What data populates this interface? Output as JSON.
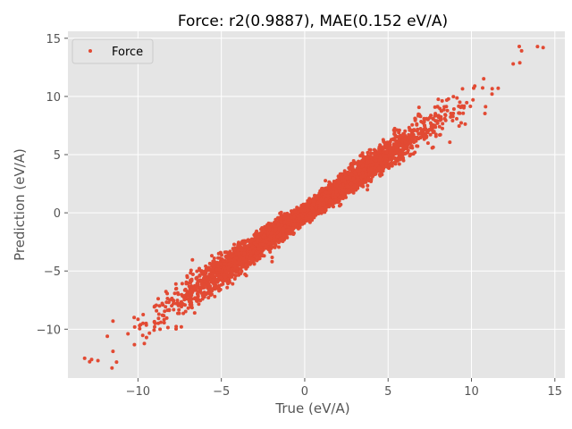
{
  "chart_data": {
    "type": "scatter",
    "title": "Force: r2(0.9887), MAE(0.152 eV/A)",
    "xlabel": "True (eV/A)",
    "ylabel": "Prediction (eV/A)",
    "xlim": [
      -14.2,
      15.6
    ],
    "ylim": [
      -14.2,
      15.6
    ],
    "xticks": [
      -10,
      -5,
      0,
      5,
      10,
      15
    ],
    "yticks": [
      -10,
      -5,
      0,
      5,
      10,
      15
    ],
    "xtick_labels": [
      "−10",
      "−5",
      "0",
      "5",
      "10",
      "15"
    ],
    "ytick_labels": [
      "−10",
      "−5",
      "0",
      "5",
      "10",
      "15"
    ],
    "grid": true,
    "legend_position": "top-left",
    "series": [
      {
        "name": "Force",
        "color": "#E24A33",
        "marker": "dot",
        "trend": {
          "slope": 1.0,
          "intercept": 0.0,
          "r2": 0.9887,
          "mae": 0.152
        },
        "x_range": [
          -13.2,
          14.3
        ],
        "points_sample": [
          [
            -13.2,
            -12.5
          ],
          [
            -12.9,
            -12.8
          ],
          [
            -12.4,
            -12.7
          ],
          [
            -11.5,
            -11.9
          ],
          [
            -10.6,
            -10.4
          ],
          [
            -9.7,
            -9.5
          ],
          [
            -8.5,
            -8.8
          ],
          [
            -7.4,
            -9.8
          ],
          [
            -6.6,
            -8.6
          ],
          [
            -5.8,
            -6.2
          ],
          [
            -5.1,
            -3.9
          ],
          [
            -4.2,
            -4.6
          ],
          [
            -3.3,
            -3.1
          ],
          [
            -2.4,
            -1.2
          ],
          [
            -1.5,
            -1.9
          ],
          [
            0.0,
            0.2
          ],
          [
            1.3,
            1.1
          ],
          [
            2.4,
            3.6
          ],
          [
            3.2,
            3.0
          ],
          [
            4.1,
            5.1
          ],
          [
            5.2,
            5.0
          ],
          [
            6.3,
            4.9
          ],
          [
            7.2,
            7.4
          ],
          [
            8.4,
            8.1
          ],
          [
            9.3,
            9.5
          ],
          [
            10.2,
            10.9
          ],
          [
            11.6,
            10.7
          ],
          [
            12.5,
            12.8
          ],
          [
            12.9,
            12.9
          ],
          [
            14.3,
            14.2
          ]
        ]
      }
    ]
  }
}
